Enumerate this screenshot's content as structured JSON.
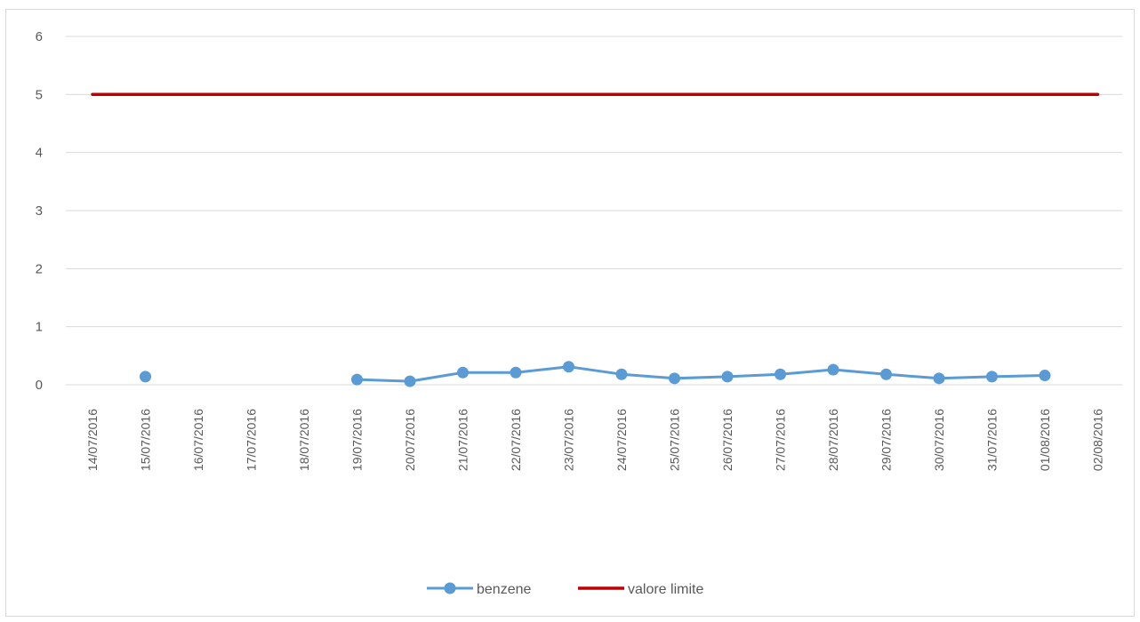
{
  "chart_data": {
    "type": "line",
    "title": "",
    "xlabel": "",
    "ylabel": "",
    "ylim": [
      0,
      6
    ],
    "yticks": [
      0,
      1,
      2,
      3,
      4,
      5,
      6
    ],
    "grid": "horizontal",
    "legend_position": "bottom",
    "x": [
      "14/07/2016",
      "15/07/2016",
      "16/07/2016",
      "17/07/2016",
      "18/07/2016",
      "19/07/2016",
      "20/07/2016",
      "21/07/2016",
      "22/07/2016",
      "23/07/2016",
      "24/07/2016",
      "25/07/2016",
      "26/07/2016",
      "27/07/2016",
      "28/07/2016",
      "29/07/2016",
      "30/07/2016",
      "31/07/2016",
      "01/08/2016",
      "02/08/2016"
    ],
    "series": [
      {
        "name": "benzene",
        "color": "#5b9bd5",
        "marker": "circle",
        "values": [
          null,
          0.14,
          null,
          null,
          null,
          0.09,
          0.06,
          0.21,
          0.21,
          0.31,
          0.18,
          0.11,
          0.14,
          0.18,
          0.26,
          0.18,
          0.11,
          0.14,
          0.16,
          null
        ]
      },
      {
        "name": "valore limite",
        "color": "#c00000",
        "marker": "none",
        "values": [
          5,
          5,
          5,
          5,
          5,
          5,
          5,
          5,
          5,
          5,
          5,
          5,
          5,
          5,
          5,
          5,
          5,
          5,
          5,
          5
        ]
      }
    ]
  }
}
